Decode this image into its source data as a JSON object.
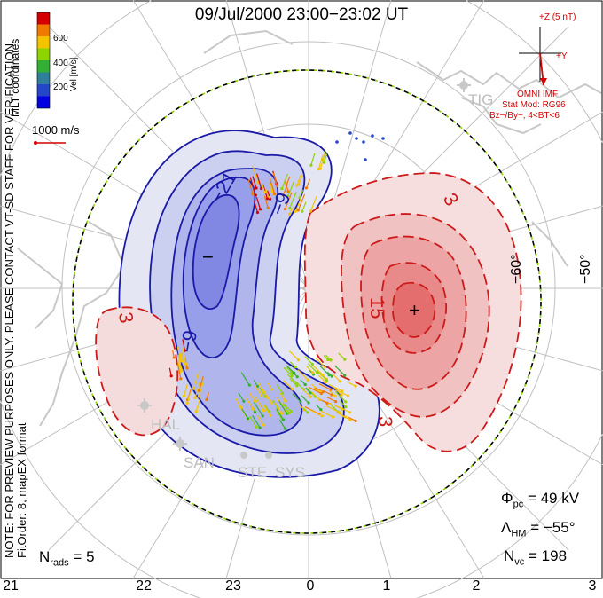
{
  "title": "09/Jul/2000 23:00−23:02 UT",
  "notes": {
    "preview": "NOTE: FOR PREVIEW PURPOSES ONLY. PLEASE CONTACT VT-SD STAFF FOR VERIFICATION.",
    "fitorder": "FitOrder: 8, mapEX format",
    "coords": "MLT coordinates"
  },
  "colorbar": {
    "label": "Vel [m/s]",
    "ticks": [
      "600",
      "400",
      "200"
    ],
    "colors": [
      "#d40000",
      "#f07a00",
      "#f5c400",
      "#8fd400",
      "#33b033",
      "#2f7f9a",
      "#2446c8",
      "#0000e0"
    ]
  },
  "ref_vector": {
    "label": "1000 m/s",
    "color": "#d40000"
  },
  "imf": {
    "z_label": "+Z (5 nT)",
    "y_label": "+Y",
    "source": "OMNI IMF",
    "model": "Stat Mod: RG96",
    "condition": "Bz−/By−, 4<BT<6",
    "color": "#d40000"
  },
  "stations": [
    {
      "code": "TIG"
    },
    {
      "code": "HAL"
    },
    {
      "code": "SAN"
    },
    {
      "code": "STE"
    },
    {
      "code": "SYS"
    }
  ],
  "latitude_labels": [
    "−60°",
    "−50°"
  ],
  "contour_labels": {
    "neg": [
      "−21",
      "−9",
      "−9"
    ],
    "pos": [
      "15",
      "3",
      "3",
      "3"
    ],
    "min_marker": "−",
    "max_marker": "+"
  },
  "stats": {
    "phi_sym": "Φ",
    "phi_sub": "pc",
    "phi_val": "= 49 kV",
    "lam_sym": "Λ",
    "lam_sub": "HM",
    "lam_val": "= −55°",
    "nvc_sym": "N",
    "nvc_sub": "vc",
    "nvc_val": "= 198",
    "nrads_sym": "N",
    "nrads_sub": "rads",
    "nrads_val": "= 5"
  },
  "mlt_labels": [
    "21",
    "22",
    "23",
    "0",
    "1",
    "2",
    "3"
  ],
  "map_colors": {
    "negative_line": "#1a1aa6",
    "positive_line": "#cc1a1a",
    "negative_fill": "#7a80e0",
    "positive_fill": "#e8706e",
    "boundary_dash": "#8fd400",
    "land": "#c8c8c8",
    "grid": "#bdbdbd"
  }
}
